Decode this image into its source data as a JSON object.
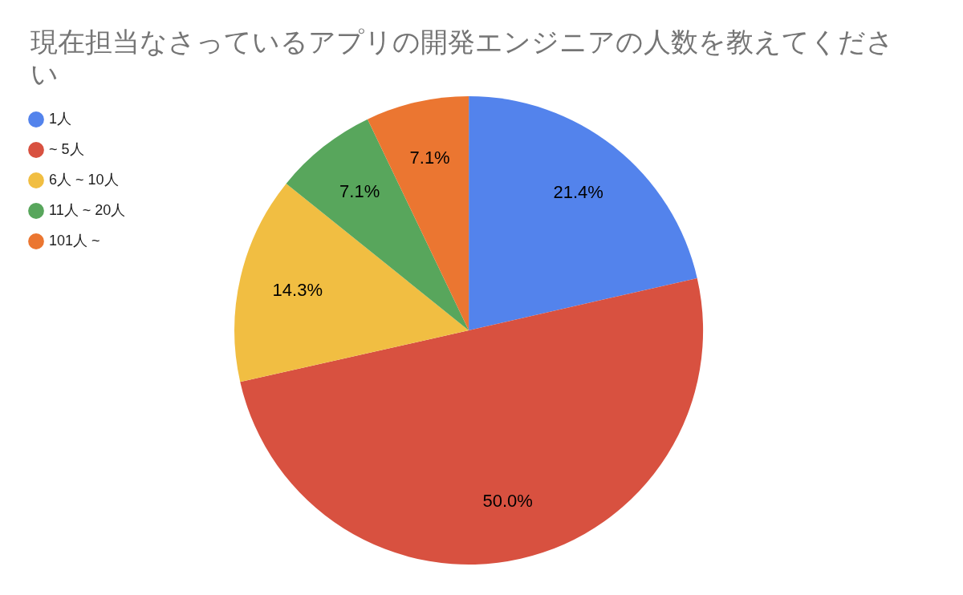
{
  "chart_data": {
    "type": "pie",
    "title": "現在担当なさっているアプリの開発エンジニアの人数を教えてください",
    "categories": [
      "1人",
      "~ 5人",
      "6人 ~ 10人",
      "11人 ~ 20人",
      "101人 ~"
    ],
    "values": [
      21.4,
      50.0,
      14.3,
      7.1,
      7.1
    ],
    "colors": [
      "#5383ec",
      "#d85140",
      "#f1be42",
      "#58a65c",
      "#eb7631"
    ],
    "value_labels": [
      "21.4%",
      "50.0%",
      "14.3%",
      "7.1%",
      "7.1%"
    ],
    "legend": "top left"
  }
}
